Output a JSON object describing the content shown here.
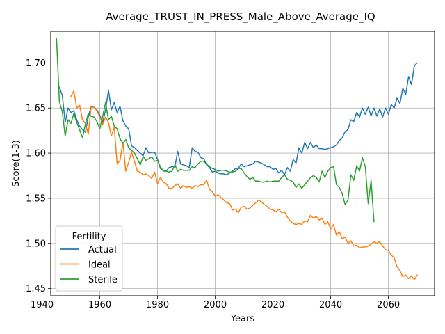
{
  "chart_data": {
    "type": "line",
    "title": "Average_TRUST_IN_PRESS_Male_Above_Average_IQ",
    "xlabel": "Years",
    "ylabel": "Score(1-3)",
    "xlim": [
      1943,
      2076
    ],
    "ylim": [
      1.442,
      1.735
    ],
    "xticks": [
      1940,
      1960,
      1980,
      2000,
      2020,
      2040,
      2060
    ],
    "yticks": [
      1.45,
      1.5,
      1.55,
      1.6,
      1.65,
      1.7
    ],
    "ytick_labels": [
      "1.45",
      "1.50",
      "1.55",
      "1.60",
      "1.65",
      "1.70"
    ],
    "grid": true,
    "legend": {
      "title": "Fertility",
      "placement": "bottom-left"
    },
    "series": [
      {
        "name": "Actual",
        "color": "#1f77b4",
        "x": [
          1946,
          1947,
          1948,
          1949,
          1950,
          1951,
          1952,
          1953,
          1954,
          1955,
          1956,
          1957,
          1958,
          1959,
          1960,
          1961,
          1962,
          1963,
          1964,
          1965,
          1966,
          1967,
          1968,
          1969,
          1970,
          1971,
          1972,
          1973,
          1974,
          1975,
          1976,
          1977,
          1978,
          1979,
          1980,
          1981,
          1982,
          1983,
          1984,
          1985,
          1986,
          1987,
          1988,
          1989,
          1990,
          1991,
          1992,
          1993,
          1994,
          1995,
          1996,
          1997,
          1998,
          1999,
          2000,
          2001,
          2002,
          2003,
          2004,
          2005,
          2006,
          2007,
          2008,
          2009,
          2010,
          2011,
          2012,
          2013,
          2014,
          2015,
          2016,
          2017,
          2018,
          2019,
          2020,
          2021,
          2022,
          2023,
          2024,
          2025,
          2026,
          2027,
          2028,
          2029,
          2030,
          2031,
          2032,
          2033,
          2034,
          2035,
          2036,
          2037,
          2038,
          2039,
          2040,
          2041,
          2042,
          2043,
          2044,
          2045,
          2046,
          2047,
          2048,
          2049,
          2050,
          2051,
          2052,
          2053,
          2054,
          2055,
          2056,
          2057,
          2058,
          2059,
          2060,
          2061,
          2062,
          2063,
          2064,
          2065,
          2066,
          2067,
          2068,
          2069,
          2070
        ],
        "values": [
          1.673,
          1.664,
          1.634,
          1.65,
          1.645,
          1.647,
          1.637,
          1.63,
          1.626,
          1.623,
          1.64,
          1.652,
          1.651,
          1.648,
          1.642,
          1.634,
          1.648,
          1.67,
          1.648,
          1.656,
          1.645,
          1.652,
          1.636,
          1.63,
          1.627,
          1.608,
          1.606,
          1.603,
          1.6,
          1.597,
          1.606,
          1.6,
          1.601,
          1.601,
          1.593,
          1.583,
          1.581,
          1.58,
          1.584,
          1.585,
          1.585,
          1.602,
          1.588,
          1.587,
          1.586,
          1.584,
          1.606,
          1.602,
          1.601,
          1.595,
          1.594,
          1.587,
          1.584,
          1.579,
          1.58,
          1.578,
          1.577,
          1.577,
          1.576,
          1.578,
          1.58,
          1.583,
          1.583,
          1.588,
          1.585,
          1.586,
          1.587,
          1.588,
          1.591,
          1.59,
          1.589,
          1.587,
          1.585,
          1.585,
          1.582,
          1.583,
          1.578,
          1.581,
          1.576,
          1.584,
          1.58,
          1.593,
          1.589,
          1.606,
          1.6,
          1.612,
          1.605,
          1.612,
          1.606,
          1.609,
          1.605,
          1.605,
          1.604,
          1.605,
          1.606,
          1.607,
          1.609,
          1.614,
          1.617,
          1.624,
          1.626,
          1.637,
          1.635,
          1.645,
          1.64,
          1.65,
          1.643,
          1.651,
          1.641,
          1.65,
          1.641,
          1.649,
          1.64,
          1.65,
          1.643,
          1.654,
          1.65,
          1.661,
          1.655,
          1.672,
          1.665,
          1.685,
          1.676,
          1.697,
          1.7
        ]
      },
      {
        "name": "Ideal",
        "color": "#ff7f0e",
        "x": [
          1950,
          1951,
          1952,
          1953,
          1954,
          1955,
          1956,
          1957,
          1958,
          1959,
          1960,
          1961,
          1962,
          1963,
          1964,
          1965,
          1966,
          1967,
          1968,
          1969,
          1970,
          1971,
          1972,
          1973,
          1974,
          1975,
          1976,
          1977,
          1978,
          1979,
          1980,
          1981,
          1982,
          1983,
          1984,
          1985,
          1986,
          1987,
          1988,
          1989,
          1990,
          1991,
          1992,
          1993,
          1994,
          1995,
          1996,
          1997,
          1998,
          1999,
          2000,
          2001,
          2002,
          2003,
          2004,
          2005,
          2006,
          2007,
          2008,
          2009,
          2010,
          2011,
          2012,
          2013,
          2014,
          2015,
          2016,
          2017,
          2018,
          2019,
          2020,
          2021,
          2022,
          2023,
          2024,
          2025,
          2026,
          2027,
          2028,
          2029,
          2030,
          2031,
          2032,
          2033,
          2034,
          2035,
          2036,
          2037,
          2038,
          2039,
          2040,
          2041,
          2042,
          2043,
          2044,
          2045,
          2046,
          2047,
          2048,
          2049,
          2050,
          2051,
          2052,
          2053,
          2054,
          2055,
          2056,
          2057,
          2058,
          2059,
          2060,
          2061,
          2062,
          2063,
          2064,
          2065,
          2066,
          2067,
          2068,
          2069,
          2070
        ],
        "values": [
          1.663,
          1.669,
          1.65,
          1.653,
          1.637,
          1.633,
          1.621,
          1.651,
          1.651,
          1.647,
          1.64,
          1.632,
          1.64,
          1.634,
          1.619,
          1.629,
          1.588,
          1.592,
          1.612,
          1.58,
          1.59,
          1.601,
          1.591,
          1.58,
          1.579,
          1.576,
          1.577,
          1.575,
          1.572,
          1.579,
          1.566,
          1.573,
          1.568,
          1.566,
          1.561,
          1.561,
          1.564,
          1.566,
          1.561,
          1.564,
          1.562,
          1.563,
          1.561,
          1.564,
          1.563,
          1.565,
          1.565,
          1.57,
          1.56,
          1.557,
          1.552,
          1.554,
          1.551,
          1.548,
          1.545,
          1.544,
          1.537,
          1.538,
          1.534,
          1.54,
          1.541,
          1.538,
          1.539,
          1.542,
          1.545,
          1.548,
          1.546,
          1.543,
          1.541,
          1.538,
          1.537,
          1.535,
          1.538,
          1.534,
          1.535,
          1.529,
          1.525,
          1.522,
          1.521,
          1.522,
          1.521,
          1.525,
          1.524,
          1.531,
          1.528,
          1.53,
          1.526,
          1.528,
          1.521,
          1.524,
          1.516,
          1.521,
          1.509,
          1.513,
          1.505,
          1.507,
          1.5,
          1.503,
          1.497,
          1.498,
          1.495,
          1.496,
          1.496,
          1.497,
          1.499,
          1.502,
          1.5,
          1.502,
          1.497,
          1.493,
          1.492,
          1.487,
          1.484,
          1.474,
          1.47,
          1.463,
          1.465,
          1.461,
          1.464,
          1.46,
          1.465
        ]
      },
      {
        "name": "Sterile",
        "color": "#2ca02c",
        "x": [
          1945,
          1946,
          1947,
          1948,
          1949,
          1950,
          1951,
          1952,
          1953,
          1954,
          1955,
          1956,
          1957,
          1958,
          1959,
          1960,
          1961,
          1962,
          1963,
          1964,
          1965,
          1966,
          1967,
          1968,
          1969,
          1970,
          1971,
          1972,
          1973,
          1974,
          1975,
          1976,
          1977,
          1978,
          1979,
          1980,
          1981,
          1982,
          1983,
          1984,
          1985,
          1986,
          1987,
          1988,
          1989,
          1990,
          1991,
          1992,
          1993,
          1994,
          1995,
          1996,
          1997,
          1998,
          1999,
          2000,
          2001,
          2002,
          2003,
          2004,
          2005,
          2006,
          2007,
          2008,
          2009,
          2010,
          2011,
          2012,
          2013,
          2014,
          2015,
          2016,
          2017,
          2018,
          2019,
          2020,
          2021,
          2022,
          2023,
          2024,
          2025,
          2026,
          2027,
          2028,
          2029,
          2030,
          2031,
          2032,
          2033,
          2034,
          2035,
          2036,
          2037,
          2038,
          2039,
          2040,
          2041,
          2042,
          2043,
          2044,
          2045,
          2046,
          2047,
          2048,
          2049,
          2050,
          2051,
          2052,
          2053,
          2054,
          2055
        ],
        "values": [
          1.727,
          1.657,
          1.646,
          1.619,
          1.637,
          1.633,
          1.644,
          1.634,
          1.626,
          1.617,
          1.632,
          1.644,
          1.641,
          1.64,
          1.635,
          1.627,
          1.641,
          1.656,
          1.637,
          1.641,
          1.63,
          1.627,
          1.616,
          1.611,
          1.615,
          1.606,
          1.603,
          1.6,
          1.594,
          1.587,
          1.596,
          1.592,
          1.594,
          1.596,
          1.591,
          1.592,
          1.585,
          1.58,
          1.58,
          1.579,
          1.58,
          1.587,
          1.58,
          1.582,
          1.581,
          1.581,
          1.581,
          1.585,
          1.584,
          1.588,
          1.591,
          1.591,
          1.588,
          1.585,
          1.583,
          1.582,
          1.58,
          1.581,
          1.581,
          1.58,
          1.579,
          1.579,
          1.58,
          1.583,
          1.583,
          1.578,
          1.574,
          1.571,
          1.573,
          1.569,
          1.569,
          1.568,
          1.568,
          1.569,
          1.568,
          1.569,
          1.569,
          1.569,
          1.573,
          1.576,
          1.571,
          1.57,
          1.568,
          1.562,
          1.566,
          1.561,
          1.565,
          1.569,
          1.573,
          1.575,
          1.573,
          1.568,
          1.58,
          1.573,
          1.58,
          1.584,
          1.585,
          1.565,
          1.562,
          1.555,
          1.543,
          1.548,
          1.576,
          1.57,
          1.586,
          1.58,
          1.595,
          1.585,
          1.544,
          1.57,
          1.524
        ]
      }
    ]
  }
}
